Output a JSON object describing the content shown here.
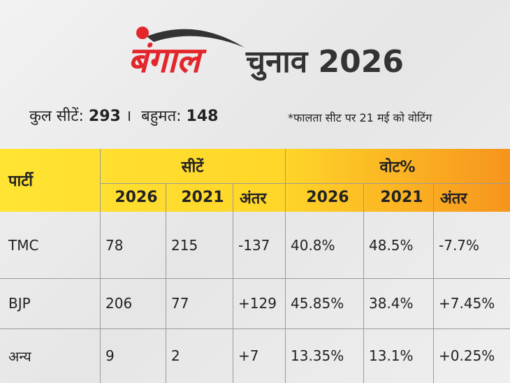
{
  "header": {
    "brand": "बंगाल",
    "title": "चुनाव 2026"
  },
  "summary": {
    "total_label": "कुल सीटें:",
    "total": "293",
    "separator": "।",
    "majority_label": "बहुमत:",
    "majority": "148",
    "note": "*फालता सीट पर 21 मई को वोटिंग"
  },
  "table": {
    "party_header": "पार्टी",
    "groups": [
      "सीटें",
      "वोट%"
    ],
    "columns": [
      "2026",
      "2021",
      "अंतर",
      "2026",
      "2021",
      "अंतर"
    ],
    "rows": [
      [
        "TMC",
        "78",
        "215",
        "-137",
        "40.8%",
        "48.5%",
        "-7.7%"
      ],
      [
        "BJP",
        "206",
        "77",
        "+129",
        "45.85%",
        "38.4%",
        "+7.45%"
      ],
      [
        "अन्य",
        "9",
        "2",
        "+7",
        "13.35%",
        "13.1%",
        "+0.25%"
      ]
    ]
  }
}
